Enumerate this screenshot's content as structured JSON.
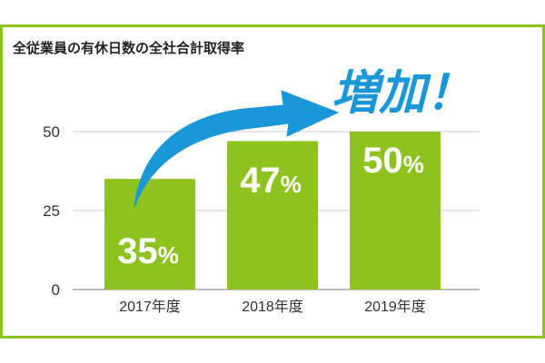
{
  "chart_data": {
    "type": "bar",
    "title": "全従業員の有休日数の全社合計取得率",
    "categories": [
      "2017年度",
      "2018年度",
      "2019年度"
    ],
    "values": [
      35,
      47,
      50
    ],
    "data_labels": [
      "35%",
      "47%",
      "50%"
    ],
    "yticks": [
      0,
      25,
      50
    ],
    "ylim": [
      0,
      50
    ],
    "grid": true,
    "annotation": "増加！",
    "colors": {
      "bar": "#8dc21f",
      "frame": "#8dc21f",
      "arrow": "#1a97d6",
      "label": "#ffffff",
      "annotation": "#1a97d6"
    }
  }
}
